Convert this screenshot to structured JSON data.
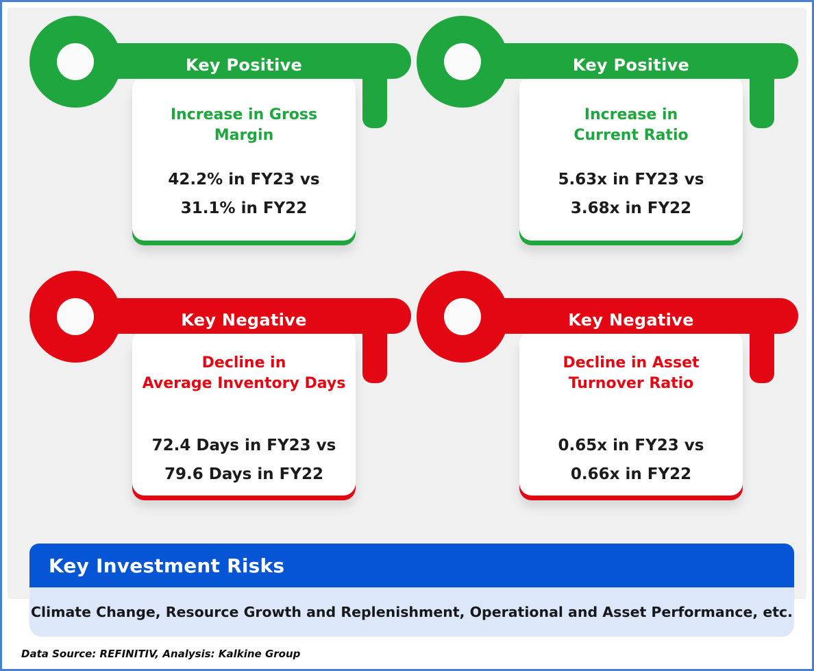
{
  "colors": {
    "positive": "#1fa63e",
    "negative": "#e20713",
    "banner_blue": "#0655d5",
    "strip_light_blue": "#dce7fa",
    "frame_border": "#4b80cf",
    "panel_gray": "#f0f0f1"
  },
  "cards": [
    {
      "key_label": "Key Positive",
      "sentiment": "positive",
      "title_lines": [
        "Increase in Gross",
        "Margin"
      ],
      "value_lines": [
        "42.2% in FY23 vs",
        "31.1% in FY22"
      ]
    },
    {
      "key_label": "Key Positive",
      "sentiment": "positive",
      "title_lines": [
        "Increase in",
        "Current Ratio"
      ],
      "value_lines": [
        "5.63x in FY23 vs",
        "3.68x in FY22"
      ]
    },
    {
      "key_label": "Key Negative",
      "sentiment": "negative",
      "title_lines": [
        "Decline in",
        "Average Inventory Days"
      ],
      "value_lines": [
        "72.4 Days in FY23 vs",
        "79.6 Days in FY22"
      ]
    },
    {
      "key_label": "Key Negative",
      "sentiment": "negative",
      "title_lines": [
        "Decline in Asset",
        "Turnover Ratio"
      ],
      "value_lines": [
        "0.65x in FY23 vs",
        "0.66x in FY22"
      ]
    }
  ],
  "risks": {
    "title": "Key Investment Risks",
    "text": "Climate Change, Resource Growth and Replenishment, Operational and Asset Performance, etc."
  },
  "footer": {
    "source": "Data Source: REFINITIV, Analysis: Kalkine Group"
  }
}
